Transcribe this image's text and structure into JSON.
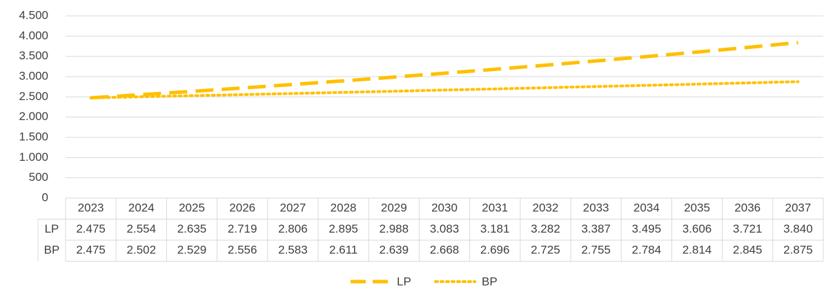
{
  "chart_data": {
    "type": "line",
    "categories": [
      "2023",
      "2024",
      "2025",
      "2026",
      "2027",
      "2028",
      "2029",
      "2030",
      "2031",
      "2032",
      "2033",
      "2034",
      "2035",
      "2036",
      "2037"
    ],
    "series": [
      {
        "name": "LP",
        "color": "#ffc000",
        "style": "dashed",
        "values": [
          2475,
          2554,
          2635,
          2719,
          2806,
          2895,
          2988,
          3083,
          3181,
          3282,
          3387,
          3495,
          3606,
          3721,
          3840
        ],
        "value_labels": [
          "2.475",
          "2.554",
          "2.635",
          "2.719",
          "2.806",
          "2.895",
          "2.988",
          "3.083",
          "3.181",
          "3.282",
          "3.387",
          "3.495",
          "3.606",
          "3.721",
          "3.840"
        ]
      },
      {
        "name": "BP",
        "color": "#ffc000",
        "style": "dotted",
        "values": [
          2475,
          2502,
          2529,
          2556,
          2583,
          2611,
          2639,
          2668,
          2696,
          2725,
          2755,
          2784,
          2814,
          2845,
          2875
        ],
        "value_labels": [
          "2.475",
          "2.502",
          "2.529",
          "2.556",
          "2.583",
          "2.611",
          "2.639",
          "2.668",
          "2.696",
          "2.725",
          "2.755",
          "2.784",
          "2.814",
          "2.845",
          "2.875"
        ]
      }
    ],
    "ylim": [
      0,
      4500
    ],
    "yticks": [
      0,
      {
        "value": 500,
        "label": "500"
      },
      {
        "value": 1000,
        "label": "1.000"
      },
      {
        "value": 1500,
        "label": "1.500"
      },
      {
        "value": 2000,
        "label": "2.000"
      },
      {
        "value": 2500,
        "label": "2.500"
      },
      {
        "value": 3000,
        "label": "3.000"
      },
      {
        "value": 3500,
        "label": "3.500"
      },
      {
        "value": 4000,
        "label": "4.000"
      },
      {
        "value": 4500,
        "label": "4.500"
      }
    ],
    "grid": true,
    "legend": "bottom",
    "data_table": true
  }
}
